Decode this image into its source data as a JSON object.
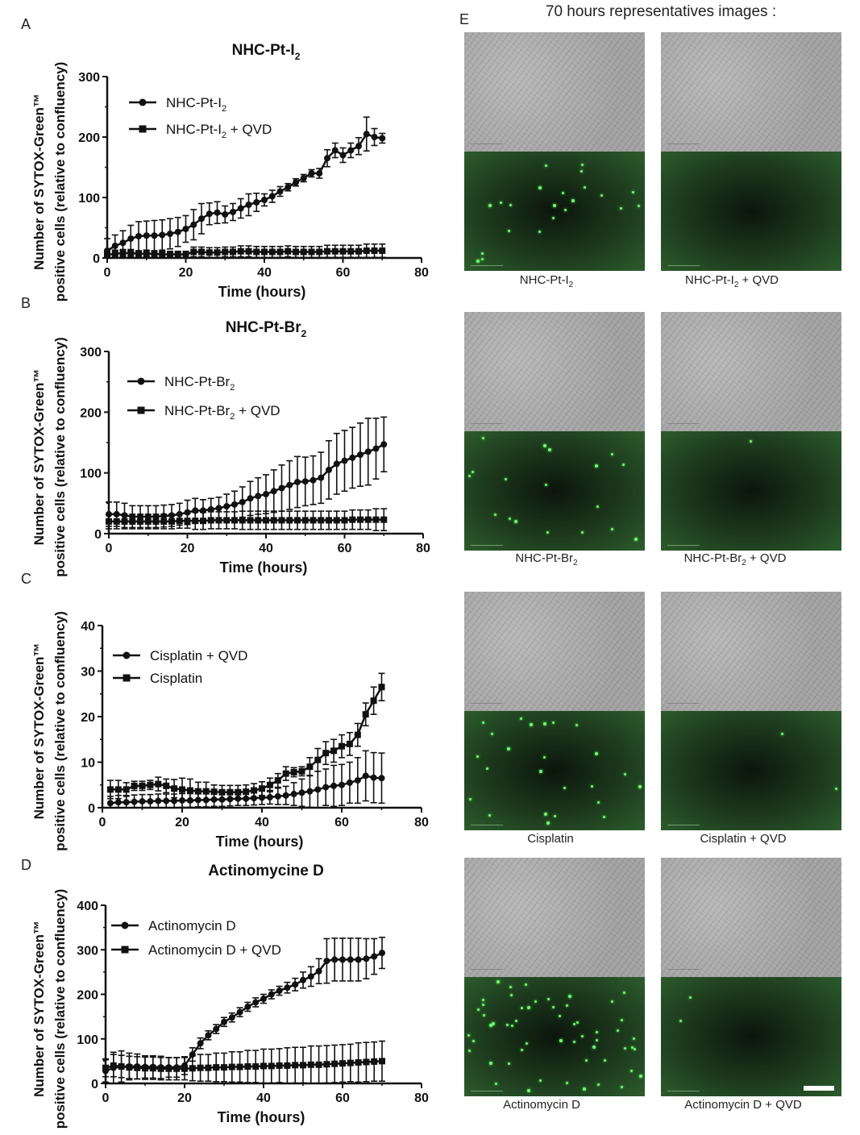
{
  "panel_letters": {
    "a": "A",
    "b": "B",
    "c": "C",
    "d": "D",
    "e": "E"
  },
  "images": {
    "title": "70 hours representatives images :",
    "rows": [
      {
        "left_caption": "NHC-Pt-I",
        "left_sub": "2",
        "left_suffix": "",
        "right_caption": "NHC-Pt-I",
        "right_sub": "2",
        "right_suffix": " + QVD"
      },
      {
        "left_caption": "NHC-Pt-Br",
        "left_sub": "2",
        "left_suffix": "",
        "right_caption": "NHC-Pt-Br",
        "right_sub": "2",
        "right_suffix": " + QVD"
      },
      {
        "left_caption": "Cisplatin",
        "left_sub": "",
        "left_suffix": "",
        "right_caption": "Cisplatin + QVD",
        "right_sub": "",
        "right_suffix": ""
      },
      {
        "left_caption": "Actinomycin D",
        "left_sub": "",
        "left_suffix": "",
        "right_caption": "Actinomycin D + QVD",
        "right_sub": "",
        "right_suffix": ""
      }
    ]
  },
  "colors": {
    "series": "#111111",
    "axis": "#111111"
  },
  "chart_data": [
    {
      "type": "line",
      "title_main": "NHC-Pt-I",
      "title_sub": "2",
      "ylabel_line1": "Number of SYTOX-Green™",
      "ylabel_line2": "positive cells (relative to confluency)",
      "xlabel": "Time (hours)",
      "xlim": [
        0,
        80
      ],
      "ylim": [
        0,
        300
      ],
      "xticks": [
        0,
        20,
        40,
        60,
        80
      ],
      "yticks": [
        0,
        100,
        200,
        300
      ],
      "series": [
        {
          "name": "NHC-Pt-I",
          "name_sub": "2",
          "name_suffix": "",
          "marker": "circle",
          "x": [
            0,
            2,
            4,
            6,
            8,
            10,
            12,
            14,
            16,
            18,
            20,
            22,
            24,
            26,
            28,
            30,
            32,
            34,
            36,
            38,
            40,
            42,
            44,
            46,
            48,
            50,
            52,
            54,
            56,
            58,
            60,
            62,
            64,
            66,
            68,
            70
          ],
          "y": [
            12,
            20,
            25,
            32,
            36,
            37,
            37,
            38,
            40,
            43,
            48,
            55,
            65,
            73,
            75,
            72,
            76,
            82,
            88,
            92,
            96,
            102,
            110,
            117,
            125,
            132,
            140,
            140,
            165,
            178,
            170,
            178,
            185,
            205,
            200,
            198
          ],
          "err": [
            20,
            18,
            20,
            22,
            24,
            24,
            25,
            25,
            25,
            24,
            22,
            25,
            25,
            18,
            18,
            14,
            14,
            16,
            18,
            15,
            10,
            10,
            8,
            6,
            6,
            6,
            6,
            8,
            14,
            12,
            12,
            12,
            14,
            28,
            14,
            8
          ]
        },
        {
          "name": "NHC-Pt-I",
          "name_sub": "2",
          "name_suffix": " + QVD",
          "marker": "square",
          "x": [
            0,
            2,
            4,
            6,
            8,
            10,
            12,
            14,
            16,
            18,
            20,
            22,
            24,
            26,
            28,
            30,
            32,
            34,
            36,
            38,
            40,
            42,
            44,
            46,
            48,
            50,
            52,
            54,
            56,
            58,
            60,
            62,
            64,
            66,
            68,
            70
          ],
          "y": [
            5,
            7,
            8,
            8,
            7,
            7,
            7,
            6,
            6,
            6,
            6,
            10,
            10,
            9,
            9,
            10,
            10,
            11,
            11,
            10,
            10,
            10,
            10,
            11,
            10,
            10,
            10,
            10,
            11,
            11,
            11,
            11,
            11,
            12,
            12,
            12
          ],
          "err": [
            6,
            6,
            6,
            6,
            5,
            5,
            5,
            5,
            5,
            5,
            5,
            8,
            8,
            8,
            8,
            8,
            8,
            9,
            9,
            9,
            9,
            9,
            9,
            9,
            9,
            9,
            9,
            9,
            10,
            10,
            10,
            10,
            10,
            11,
            11,
            11
          ]
        }
      ]
    },
    {
      "type": "line",
      "title_main": "NHC-Pt-Br",
      "title_sub": "2",
      "ylabel_line1": "Number of SYTOX-Green™",
      "ylabel_line2": "positive cells (relative to confluency)",
      "xlabel": "Time (hours)",
      "xlim": [
        0,
        80
      ],
      "ylim": [
        0,
        300
      ],
      "xticks": [
        0,
        20,
        40,
        60,
        80
      ],
      "yticks": [
        0,
        100,
        200,
        300
      ],
      "series": [
        {
          "name": "NHC-Pt-Br",
          "name_sub": "2",
          "name_suffix": "",
          "marker": "circle",
          "x": [
            0,
            2,
            4,
            6,
            8,
            10,
            12,
            14,
            16,
            18,
            20,
            22,
            24,
            26,
            28,
            30,
            32,
            34,
            36,
            38,
            40,
            42,
            44,
            46,
            48,
            50,
            52,
            54,
            56,
            58,
            60,
            62,
            64,
            66,
            68,
            70
          ],
          "y": [
            32,
            32,
            30,
            28,
            28,
            28,
            28,
            29,
            30,
            32,
            35,
            38,
            38,
            40,
            42,
            45,
            48,
            52,
            58,
            62,
            65,
            70,
            75,
            80,
            85,
            86,
            88,
            92,
            105,
            115,
            120,
            125,
            130,
            135,
            140,
            147
          ],
          "err": [
            20,
            20,
            20,
            18,
            18,
            18,
            18,
            18,
            18,
            18,
            20,
            20,
            18,
            18,
            18,
            20,
            22,
            25,
            28,
            30,
            32,
            35,
            38,
            40,
            42,
            40,
            40,
            42,
            48,
            50,
            50,
            50,
            52,
            55,
            50,
            45
          ]
        },
        {
          "name": "NHC-Pt-Br",
          "name_sub": "2",
          "name_suffix": " + QVD",
          "marker": "square",
          "x": [
            0,
            2,
            4,
            6,
            8,
            10,
            12,
            14,
            16,
            18,
            20,
            22,
            24,
            26,
            28,
            30,
            32,
            34,
            36,
            38,
            40,
            42,
            44,
            46,
            48,
            50,
            52,
            54,
            56,
            58,
            60,
            62,
            64,
            66,
            68,
            70
          ],
          "y": [
            20,
            20,
            20,
            20,
            20,
            20,
            20,
            20,
            20,
            21,
            21,
            21,
            21,
            22,
            22,
            22,
            22,
            22,
            22,
            22,
            22,
            22,
            22,
            22,
            22,
            22,
            22,
            22,
            22,
            22,
            22,
            23,
            23,
            23,
            23,
            23
          ],
          "err": [
            12,
            12,
            12,
            12,
            12,
            12,
            12,
            12,
            12,
            12,
            12,
            14,
            14,
            14,
            14,
            14,
            14,
            15,
            15,
            15,
            15,
            15,
            15,
            15,
            15,
            15,
            15,
            15,
            15,
            15,
            15,
            16,
            16,
            16,
            18,
            18
          ]
        }
      ]
    },
    {
      "type": "line",
      "title_main": "",
      "title_sub": "",
      "ylabel_line1": "Number of SYTOX-Green™",
      "ylabel_line2": "positive cells (relative to confluency)",
      "xlabel": "Time (hours)",
      "xlim": [
        0,
        80
      ],
      "ylim": [
        0,
        40
      ],
      "xticks": [
        0,
        20,
        40,
        60,
        80
      ],
      "yticks": [
        0,
        10,
        20,
        30,
        40
      ],
      "series": [
        {
          "name": "Cisplatin + QVD",
          "name_sub": "",
          "name_suffix": "",
          "marker": "circle",
          "x": [
            2,
            4,
            6,
            8,
            10,
            12,
            14,
            16,
            18,
            20,
            22,
            24,
            26,
            28,
            30,
            32,
            34,
            36,
            38,
            40,
            42,
            44,
            46,
            48,
            50,
            52,
            54,
            56,
            58,
            60,
            62,
            64,
            66,
            68,
            70
          ],
          "y": [
            1.0,
            1.2,
            1.2,
            1.3,
            1.4,
            1.4,
            1.5,
            1.5,
            1.5,
            1.6,
            1.6,
            1.7,
            1.7,
            1.8,
            1.8,
            1.9,
            2.0,
            2.0,
            2.1,
            2.2,
            2.3,
            2.5,
            2.7,
            3.0,
            3.3,
            3.6,
            4.0,
            4.5,
            4.8,
            5.0,
            5.5,
            6.0,
            7.0,
            6.6,
            6.5
          ],
          "err": [
            1.5,
            1.5,
            1.5,
            1.5,
            1.5,
            1.5,
            1.5,
            1.5,
            1.5,
            1.5,
            1.5,
            1.5,
            1.5,
            1.5,
            1.5,
            1.5,
            1.5,
            1.5,
            1.5,
            1.5,
            1.5,
            1.8,
            2.0,
            2.5,
            3.0,
            3.5,
            4.0,
            4.0,
            4.5,
            4.5,
            4.5,
            5.0,
            5.5,
            5.5,
            5.5
          ]
        },
        {
          "name": "Cisplatin",
          "name_sub": "",
          "name_suffix": "",
          "marker": "square",
          "x": [
            2,
            4,
            6,
            8,
            10,
            12,
            14,
            16,
            18,
            20,
            22,
            24,
            26,
            28,
            30,
            32,
            34,
            36,
            38,
            40,
            42,
            44,
            46,
            48,
            50,
            52,
            54,
            56,
            58,
            60,
            62,
            64,
            66,
            68,
            70
          ],
          "y": [
            4.0,
            4.0,
            4.0,
            4.8,
            4.8,
            5.0,
            5.2,
            4.8,
            4.2,
            4.0,
            3.8,
            3.6,
            3.6,
            3.5,
            3.4,
            3.4,
            3.4,
            3.5,
            3.8,
            4.2,
            5.0,
            6.0,
            7.5,
            7.8,
            8.0,
            9.0,
            10.5,
            12.0,
            12.5,
            13.5,
            14.0,
            16.0,
            20.5,
            23.5,
            26.5
          ],
          "err": [
            2.0,
            2.0,
            1.5,
            1.0,
            1.0,
            1.0,
            1.5,
            1.5,
            2.0,
            2.5,
            2.5,
            2.0,
            2.0,
            1.5,
            1.5,
            1.5,
            1.5,
            1.5,
            1.5,
            1.5,
            1.5,
            1.5,
            1.5,
            1.0,
            1.0,
            2.0,
            2.5,
            2.5,
            2.5,
            2.5,
            2.5,
            2.5,
            2.5,
            3.0,
            3.0
          ]
        }
      ]
    },
    {
      "type": "line",
      "title_main": "Actinomycine D",
      "title_sub": "",
      "ylabel_line1": "Number of SYTOX-Green™",
      "ylabel_line2": "positive cells (relative to confluency)",
      "xlabel": "Time (hours)",
      "xlim": [
        0,
        80
      ],
      "ylim": [
        0,
        400
      ],
      "xticks": [
        0,
        20,
        40,
        60,
        80
      ],
      "yticks": [
        0,
        100,
        200,
        300,
        400
      ],
      "series": [
        {
          "name": "Actinomycin D",
          "name_sub": "",
          "name_suffix": "",
          "marker": "circle",
          "x": [
            0,
            2,
            4,
            6,
            8,
            10,
            12,
            14,
            16,
            18,
            20,
            22,
            24,
            26,
            28,
            30,
            32,
            34,
            36,
            38,
            40,
            42,
            44,
            46,
            48,
            50,
            52,
            54,
            56,
            58,
            60,
            62,
            64,
            66,
            68,
            70
          ],
          "y": [
            28,
            35,
            38,
            38,
            38,
            37,
            37,
            36,
            36,
            36,
            40,
            65,
            90,
            108,
            122,
            138,
            148,
            160,
            172,
            182,
            190,
            200,
            208,
            215,
            222,
            232,
            240,
            252,
            275,
            278,
            278,
            278,
            278,
            280,
            285,
            293
          ],
          "err": [
            25,
            35,
            35,
            30,
            28,
            25,
            25,
            25,
            22,
            22,
            20,
            15,
            12,
            10,
            10,
            10,
            10,
            10,
            10,
            10,
            10,
            10,
            10,
            12,
            14,
            18,
            22,
            28,
            50,
            48,
            48,
            48,
            48,
            45,
            40,
            35
          ]
        },
        {
          "name": "Actinomycin D + QVD",
          "name_sub": "",
          "name_suffix": "",
          "marker": "square",
          "x": [
            0,
            2,
            4,
            6,
            8,
            10,
            12,
            14,
            16,
            18,
            20,
            22,
            24,
            26,
            28,
            30,
            32,
            34,
            36,
            38,
            40,
            42,
            44,
            46,
            48,
            50,
            52,
            54,
            56,
            58,
            60,
            62,
            64,
            66,
            68,
            70
          ],
          "y": [
            35,
            40,
            38,
            36,
            35,
            34,
            34,
            33,
            33,
            33,
            33,
            34,
            35,
            35,
            36,
            36,
            37,
            37,
            38,
            38,
            39,
            39,
            40,
            40,
            41,
            41,
            42,
            42,
            43,
            44,
            45,
            46,
            47,
            48,
            49,
            50
          ],
          "err": [
            20,
            25,
            25,
            25,
            25,
            25,
            25,
            25,
            25,
            25,
            25,
            28,
            30,
            30,
            32,
            32,
            34,
            34,
            36,
            36,
            38,
            38,
            38,
            40,
            40,
            40,
            42,
            42,
            42,
            42,
            42,
            42,
            44,
            44,
            44,
            45
          ]
        }
      ]
    }
  ]
}
